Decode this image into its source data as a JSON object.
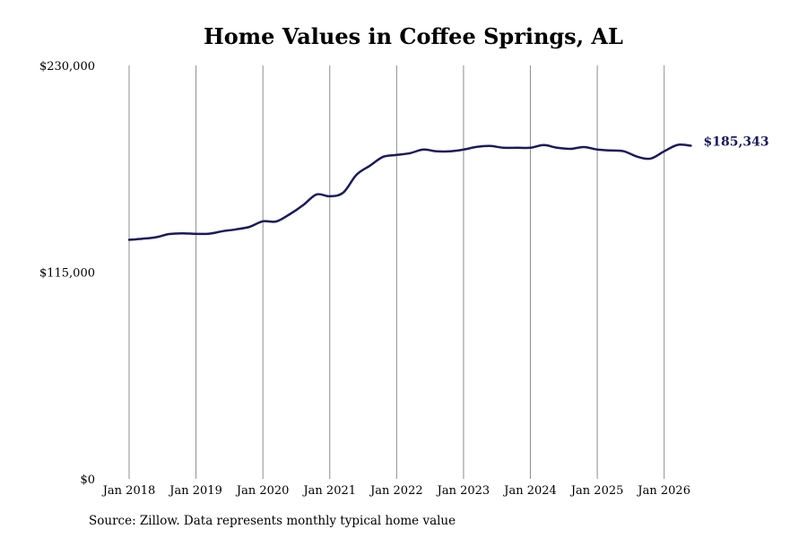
{
  "chart_data": {
    "type": "line",
    "title": "Home Values in Coffee Springs, AL",
    "source": "Source: Zillow. Data represents monthly typical home value",
    "xlabel": "",
    "ylabel": "",
    "ylim": [
      0,
      230000
    ],
    "yticks": [
      {
        "value": 0,
        "label": "$0"
      },
      {
        "value": 115000,
        "label": "$115,000"
      },
      {
        "value": 230000,
        "label": "$230,000"
      }
    ],
    "xticks": [
      {
        "value": 2018.0,
        "label": "Jan 2018"
      },
      {
        "value": 2019.0,
        "label": "Jan 2019"
      },
      {
        "value": 2020.0,
        "label": "Jan 2020"
      },
      {
        "value": 2021.0,
        "label": "Jan 2021"
      },
      {
        "value": 2022.0,
        "label": "Jan 2022"
      },
      {
        "value": 2023.0,
        "label": "Jan 2023"
      },
      {
        "value": 2024.0,
        "label": "Jan 2024"
      },
      {
        "value": 2025.0,
        "label": "Jan 2025"
      },
      {
        "value": 2026.0,
        "label": "Jan 2026"
      }
    ],
    "xlim": [
      2018.0,
      2026.5
    ],
    "grid": "vertical",
    "line_color": "#1a1a5e",
    "end_label": "$185,343",
    "series": [
      {
        "points": [
          [
            2018.0,
            133000
          ],
          [
            2018.2,
            133600
          ],
          [
            2018.4,
            134400
          ],
          [
            2018.6,
            136200
          ],
          [
            2018.8,
            136600
          ],
          [
            2019.0,
            136300
          ],
          [
            2019.2,
            136400
          ],
          [
            2019.4,
            137800
          ],
          [
            2019.6,
            138800
          ],
          [
            2019.8,
            140200
          ],
          [
            2020.0,
            143300
          ],
          [
            2020.2,
            143200
          ],
          [
            2020.4,
            147200
          ],
          [
            2020.6,
            152200
          ],
          [
            2020.8,
            158200
          ],
          [
            2021.0,
            157200
          ],
          [
            2021.2,
            159200
          ],
          [
            2021.4,
            169200
          ],
          [
            2021.6,
            174200
          ],
          [
            2021.8,
            179200
          ],
          [
            2022.0,
            180200
          ],
          [
            2022.2,
            181200
          ],
          [
            2022.4,
            183200
          ],
          [
            2022.6,
            182200
          ],
          [
            2022.8,
            182200
          ],
          [
            2023.0,
            183200
          ],
          [
            2023.2,
            184700
          ],
          [
            2023.4,
            185200
          ],
          [
            2023.6,
            184200
          ],
          [
            2023.8,
            184200
          ],
          [
            2024.0,
            184200
          ],
          [
            2024.2,
            185700
          ],
          [
            2024.4,
            184200
          ],
          [
            2024.6,
            183600
          ],
          [
            2024.8,
            184600
          ],
          [
            2025.0,
            183200
          ],
          [
            2025.2,
            182700
          ],
          [
            2025.4,
            182200
          ],
          [
            2025.6,
            179200
          ],
          [
            2025.8,
            178200
          ],
          [
            2026.0,
            182200
          ],
          [
            2026.2,
            185800
          ],
          [
            2026.4,
            185343
          ]
        ]
      }
    ]
  }
}
